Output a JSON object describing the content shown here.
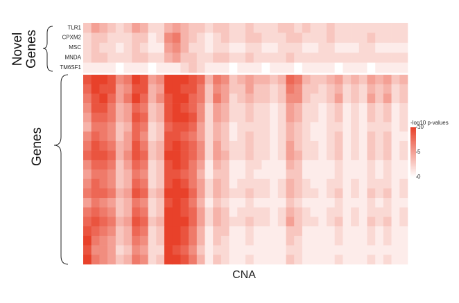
{
  "chart_data": {
    "type": "heatmap",
    "x_label": "CNA",
    "group_labels": [
      "Novel Genes",
      "Genes"
    ],
    "rows": [
      "TLR1",
      "CPXM2",
      "MSC",
      "MNDA",
      "TM6SF1",
      null,
      null,
      null,
      null,
      null,
      null,
      null,
      null,
      null,
      null,
      null,
      null,
      null,
      null,
      null,
      null,
      null,
      null,
      null,
      null
    ],
    "colormap": [
      "#ffffff",
      "#e8412a"
    ],
    "colorbar": {
      "title": "-log10 p-values",
      "lim": [
        0,
        10
      ],
      "ticks": [
        0,
        5,
        10
      ]
    },
    "values": [
      [
        3,
        5,
        4,
        3,
        2,
        3,
        5,
        4,
        2,
        2,
        4,
        5,
        4,
        3,
        3,
        2,
        3,
        3,
        2,
        2,
        3,
        2,
        2,
        2,
        3,
        3,
        2,
        3,
        2,
        2,
        3,
        2,
        2,
        2,
        2,
        2,
        2,
        2,
        2,
        2
      ],
      [
        2,
        3,
        3,
        2,
        2,
        2,
        3,
        3,
        1,
        2,
        6,
        7,
        4,
        3,
        2,
        1,
        2,
        3,
        2,
        2,
        3,
        3,
        2,
        2,
        2,
        3,
        3,
        2,
        2,
        2,
        3,
        2,
        2,
        2,
        2,
        3,
        2,
        2,
        2,
        2
      ],
      [
        2,
        3,
        2,
        2,
        1,
        2,
        3,
        2,
        1,
        1,
        5,
        6,
        4,
        2,
        2,
        1,
        2,
        2,
        1,
        1,
        2,
        2,
        1,
        1,
        2,
        2,
        2,
        1,
        1,
        2,
        2,
        1,
        1,
        1,
        2,
        2,
        1,
        1,
        1,
        1
      ],
      [
        2,
        3,
        3,
        2,
        2,
        2,
        3,
        3,
        2,
        2,
        4,
        5,
        3,
        3,
        2,
        2,
        3,
        3,
        2,
        2,
        3,
        2,
        2,
        2,
        2,
        3,
        2,
        2,
        2,
        2,
        2,
        2,
        2,
        2,
        2,
        2,
        2,
        2,
        2,
        2
      ],
      [
        1,
        1,
        1,
        1,
        0,
        1,
        1,
        1,
        0,
        1,
        1,
        1,
        2,
        3,
        2,
        1,
        1,
        1,
        0,
        1,
        1,
        1,
        0,
        1,
        1,
        1,
        0,
        1,
        1,
        1,
        1,
        0,
        1,
        1,
        1,
        0,
        1,
        1,
        1,
        1
      ],
      [
        9,
        10,
        10,
        9,
        6,
        7,
        10,
        9,
        5,
        6,
        10,
        10,
        10,
        9,
        8,
        4,
        7,
        6,
        3,
        4,
        5,
        4,
        4,
        3,
        4,
        8,
        7,
        4,
        3,
        3,
        4,
        5,
        3,
        4,
        3,
        5,
        4,
        5,
        3,
        4
      ],
      [
        8,
        10,
        9,
        9,
        5,
        6,
        9,
        9,
        4,
        5,
        10,
        10,
        9,
        9,
        7,
        3,
        6,
        5,
        3,
        3,
        5,
        3,
        3,
        2,
        3,
        7,
        6,
        3,
        3,
        2,
        3,
        4,
        2,
        3,
        2,
        4,
        3,
        4,
        2,
        3
      ],
      [
        7,
        9,
        10,
        8,
        5,
        7,
        10,
        8,
        4,
        6,
        9,
        10,
        10,
        8,
        7,
        3,
        7,
        5,
        2,
        3,
        4,
        3,
        3,
        2,
        3,
        6,
        6,
        3,
        2,
        2,
        3,
        5,
        2,
        3,
        2,
        5,
        3,
        5,
        2,
        3
      ],
      [
        6,
        9,
        9,
        7,
        4,
        5,
        8,
        7,
        3,
        4,
        9,
        10,
        9,
        8,
        6,
        2,
        5,
        4,
        2,
        2,
        3,
        2,
        2,
        1,
        2,
        5,
        4,
        2,
        2,
        1,
        2,
        3,
        1,
        2,
        1,
        3,
        2,
        3,
        1,
        2
      ],
      [
        5,
        8,
        8,
        7,
        4,
        5,
        9,
        8,
        3,
        4,
        9,
        10,
        10,
        9,
        6,
        2,
        5,
        4,
        2,
        2,
        3,
        2,
        2,
        1,
        2,
        5,
        4,
        2,
        2,
        1,
        2,
        3,
        1,
        2,
        1,
        3,
        2,
        3,
        1,
        2
      ],
      [
        4,
        7,
        7,
        6,
        3,
        4,
        8,
        7,
        2,
        3,
        8,
        9,
        9,
        8,
        5,
        2,
        4,
        3,
        1,
        2,
        2,
        2,
        2,
        1,
        2,
        4,
        3,
        2,
        1,
        1,
        2,
        2,
        1,
        2,
        1,
        2,
        2,
        2,
        1,
        2
      ],
      [
        6,
        8,
        7,
        6,
        3,
        5,
        8,
        6,
        2,
        3,
        9,
        9,
        8,
        7,
        5,
        2,
        4,
        3,
        1,
        2,
        3,
        2,
        2,
        1,
        2,
        4,
        3,
        2,
        1,
        1,
        2,
        3,
        1,
        2,
        1,
        3,
        2,
        3,
        1,
        1
      ],
      [
        7,
        9,
        8,
        7,
        4,
        5,
        9,
        7,
        3,
        4,
        9,
        10,
        9,
        8,
        6,
        2,
        5,
        3,
        2,
        2,
        3,
        2,
        2,
        1,
        2,
        5,
        3,
        2,
        2,
        1,
        2,
        3,
        1,
        2,
        1,
        3,
        2,
        3,
        1,
        2
      ],
      [
        8,
        9,
        9,
        8,
        4,
        6,
        9,
        8,
        3,
        4,
        10,
        10,
        9,
        8,
        6,
        2,
        5,
        4,
        2,
        2,
        3,
        2,
        2,
        1,
        2,
        5,
        4,
        2,
        2,
        1,
        2,
        3,
        1,
        2,
        1,
        3,
        2,
        3,
        1,
        2
      ],
      [
        6,
        8,
        8,
        7,
        3,
        5,
        8,
        7,
        2,
        3,
        9,
        10,
        9,
        7,
        5,
        1,
        4,
        3,
        1,
        1,
        2,
        2,
        1,
        1,
        1,
        4,
        3,
        1,
        1,
        1,
        1,
        2,
        1,
        1,
        1,
        2,
        1,
        2,
        1,
        1
      ],
      [
        5,
        7,
        7,
        6,
        3,
        4,
        7,
        6,
        2,
        3,
        9,
        9,
        8,
        7,
        4,
        1,
        3,
        3,
        1,
        1,
        2,
        1,
        1,
        1,
        1,
        3,
        3,
        1,
        1,
        1,
        1,
        2,
        1,
        1,
        1,
        2,
        1,
        2,
        1,
        1
      ],
      [
        6,
        8,
        7,
        6,
        3,
        4,
        8,
        7,
        2,
        3,
        9,
        10,
        9,
        7,
        5,
        2,
        4,
        3,
        1,
        2,
        2,
        2,
        2,
        1,
        2,
        4,
        3,
        2,
        1,
        1,
        2,
        2,
        1,
        2,
        1,
        2,
        2,
        2,
        1,
        2
      ],
      [
        7,
        8,
        8,
        7,
        4,
        5,
        9,
        8,
        3,
        4,
        10,
        10,
        10,
        8,
        5,
        2,
        4,
        3,
        2,
        2,
        3,
        2,
        2,
        1,
        2,
        4,
        3,
        2,
        2,
        1,
        2,
        3,
        1,
        2,
        1,
        3,
        2,
        3,
        1,
        2
      ],
      [
        5,
        7,
        6,
        5,
        3,
        4,
        7,
        6,
        2,
        3,
        9,
        10,
        9,
        7,
        4,
        1,
        3,
        2,
        1,
        1,
        2,
        1,
        1,
        1,
        1,
        3,
        2,
        1,
        1,
        1,
        1,
        2,
        1,
        1,
        1,
        2,
        1,
        2,
        1,
        1
      ],
      [
        7,
        8,
        7,
        6,
        3,
        4,
        8,
        7,
        2,
        3,
        10,
        10,
        9,
        8,
        5,
        2,
        4,
        3,
        1,
        2,
        2,
        2,
        2,
        1,
        2,
        4,
        3,
        2,
        1,
        1,
        2,
        2,
        1,
        2,
        1,
        2,
        2,
        2,
        1,
        2
      ],
      [
        8,
        9,
        8,
        7,
        4,
        5,
        9,
        8,
        3,
        4,
        10,
        10,
        10,
        8,
        5,
        2,
        4,
        3,
        2,
        2,
        3,
        2,
        2,
        1,
        2,
        5,
        3,
        2,
        2,
        1,
        2,
        3,
        1,
        2,
        1,
        3,
        2,
        3,
        1,
        2
      ],
      [
        9,
        8,
        7,
        6,
        3,
        4,
        8,
        7,
        2,
        3,
        10,
        10,
        9,
        7,
        4,
        1,
        3,
        3,
        1,
        1,
        2,
        1,
        1,
        1,
        1,
        3,
        3,
        1,
        1,
        1,
        1,
        2,
        1,
        1,
        1,
        2,
        1,
        2,
        1,
        1
      ],
      [
        10,
        7,
        6,
        5,
        3,
        4,
        7,
        6,
        2,
        3,
        10,
        10,
        9,
        7,
        4,
        1,
        3,
        2,
        1,
        1,
        2,
        1,
        1,
        1,
        1,
        3,
        2,
        1,
        1,
        1,
        1,
        2,
        1,
        1,
        1,
        2,
        1,
        2,
        1,
        1
      ],
      [
        9,
        6,
        6,
        5,
        2,
        3,
        6,
        5,
        2,
        2,
        10,
        9,
        8,
        6,
        3,
        1,
        2,
        2,
        1,
        1,
        1,
        1,
        1,
        1,
        1,
        2,
        2,
        1,
        1,
        1,
        1,
        1,
        1,
        1,
        1,
        1,
        1,
        1,
        1,
        1
      ],
      [
        10,
        7,
        6,
        5,
        3,
        4,
        7,
        6,
        2,
        3,
        10,
        10,
        9,
        7,
        4,
        1,
        3,
        2,
        1,
        1,
        2,
        1,
        1,
        1,
        1,
        3,
        2,
        1,
        1,
        1,
        1,
        2,
        1,
        1,
        1,
        2,
        1,
        2,
        1,
        1
      ]
    ]
  }
}
